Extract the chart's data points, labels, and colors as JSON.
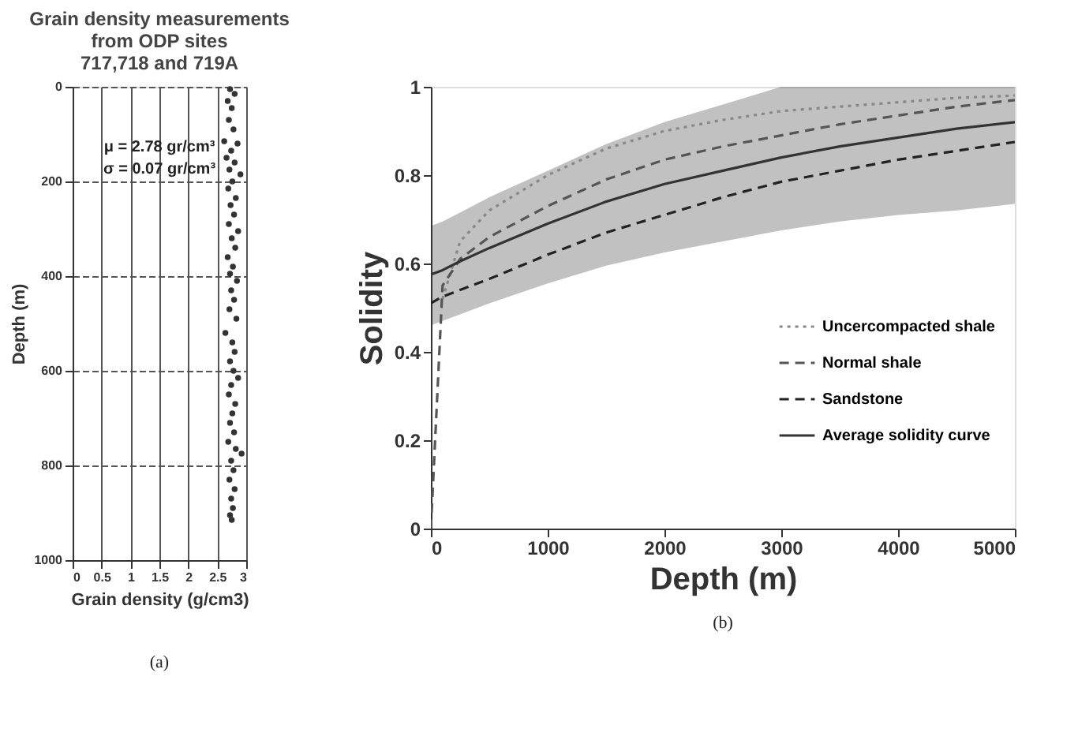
{
  "chart_data": [
    {
      "type": "scatter",
      "title": "Grain density measurements\nfrom ODP sites\n717,718 and 719A",
      "xlabel": "Grain density (g/cm3)",
      "ylabel": "Depth (m)",
      "x": [
        2.72,
        2.8,
        2.68,
        2.75,
        2.7,
        2.78,
        2.62,
        2.85,
        2.74,
        2.66,
        2.8,
        2.71,
        2.9,
        2.76,
        2.69,
        2.82,
        2.73,
        2.79,
        2.7,
        2.86,
        2.75,
        2.81,
        2.68,
        2.77,
        2.72,
        2.84,
        2.74,
        2.79,
        2.71,
        2.83,
        2.64,
        2.76,
        2.8,
        2.72,
        2.78,
        2.86,
        2.74,
        2.7,
        2.81,
        2.76,
        2.72,
        2.79,
        2.69,
        2.82,
        2.92,
        2.74,
        2.78,
        2.71,
        2.8,
        2.74,
        2.77,
        2.72,
        2.75
      ],
      "series": [
        {
          "color": "#333333",
          "values": [
            5,
            15,
            30,
            45,
            70,
            90,
            115,
            120,
            135,
            150,
            160,
            175,
            185,
            200,
            215,
            235,
            250,
            270,
            290,
            305,
            320,
            340,
            360,
            380,
            395,
            410,
            430,
            450,
            470,
            490,
            520,
            540,
            560,
            580,
            600,
            615,
            630,
            650,
            670,
            690,
            710,
            730,
            750,
            765,
            775,
            790,
            810,
            830,
            850,
            870,
            890,
            905,
            915
          ]
        }
      ],
      "xlim": [
        0,
        3
      ],
      "xticks": [
        0,
        0.5,
        1,
        1.5,
        2,
        2.5,
        3
      ],
      "ylim": [
        1000,
        0
      ],
      "yticks": [
        0,
        200,
        400,
        600,
        800,
        1000
      ],
      "grid": true,
      "marker": "circle",
      "legend": false,
      "annotations": [
        "μ = 2.78 gr/cm³",
        "σ = 0.07 gr/cm³",
        "(a)"
      ]
    },
    {
      "type": "line",
      "xlabel": "Depth (m)",
      "ylabel": "Solidity",
      "x": [
        0,
        100,
        250,
        500,
        1000,
        1500,
        2000,
        2500,
        3000,
        3500,
        4000,
        4500,
        5000
      ],
      "series": [
        {
          "name": "Uncercompacted shale",
          "color": "#888888",
          "line_style": "dotted",
          "x": [
            100,
            250,
            500,
            1000,
            1500,
            2000,
            2500,
            3000,
            3500,
            4000,
            4500,
            5000
          ],
          "values": [
            0.52,
            0.65,
            0.72,
            0.8,
            0.86,
            0.9,
            0.925,
            0.945,
            0.955,
            0.965,
            0.975,
            0.98
          ]
        },
        {
          "name": "Normal shale",
          "color": "#555555",
          "line_style": "dashed",
          "values": [
            0,
            0.55,
            0.61,
            0.66,
            0.73,
            0.79,
            0.835,
            0.865,
            0.89,
            0.915,
            0.935,
            0.955,
            0.97
          ]
        },
        {
          "name": "Sandstone",
          "color": "#222222",
          "line_style": "dashed",
          "values": [
            0.51,
            0.525,
            0.54,
            0.565,
            0.62,
            0.67,
            0.71,
            0.75,
            0.785,
            0.81,
            0.835,
            0.855,
            0.875
          ]
        },
        {
          "name": "Average solidity curve",
          "color": "#333333",
          "line_style": "solid",
          "values": [
            0.575,
            0.585,
            0.605,
            0.635,
            0.69,
            0.74,
            0.78,
            0.81,
            0.84,
            0.865,
            0.885,
            0.905,
            0.92
          ],
          "lower": [
            0.46,
            0.47,
            0.485,
            0.51,
            0.555,
            0.595,
            0.625,
            0.65,
            0.675,
            0.695,
            0.71,
            0.72,
            0.735
          ],
          "upper": [
            0.685,
            0.695,
            0.715,
            0.75,
            0.81,
            0.87,
            0.92,
            0.96,
            1.0,
            1.0,
            1.0,
            1.0,
            1.0
          ]
        }
      ],
      "xlim": [
        0,
        5000
      ],
      "xticks": [
        0,
        1000,
        2000,
        3000,
        4000,
        5000
      ],
      "ylim": [
        0,
        1
      ],
      "yticks": [
        0,
        0.2,
        0.4,
        0.6,
        0.8,
        1
      ],
      "grid": false,
      "marker": "none",
      "legend": "right",
      "annotations": [
        "(b)"
      ]
    }
  ]
}
